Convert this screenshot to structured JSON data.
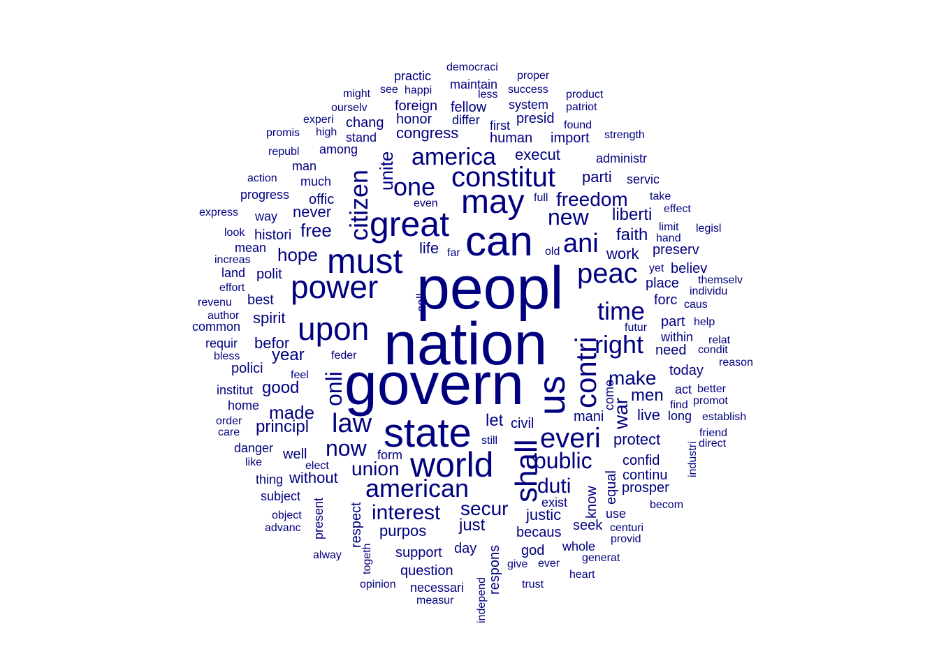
{
  "color": "#00007f",
  "words": [
    {
      "text": "peopl",
      "freq": 100
    },
    {
      "text": "nation",
      "freq": 98
    },
    {
      "text": "govern",
      "freq": 96
    },
    {
      "text": "us",
      "freq": 78,
      "vertical": true
    },
    {
      "text": "can",
      "freq": 74
    },
    {
      "text": "state",
      "freq": 70
    },
    {
      "text": "great",
      "freq": 64
    },
    {
      "text": "may",
      "freq": 62
    },
    {
      "text": "must",
      "freq": 60
    },
    {
      "text": "world",
      "freq": 58
    },
    {
      "text": "power",
      "freq": 56
    },
    {
      "text": "upon",
      "freq": 55
    },
    {
      "text": "shall",
      "freq": 54,
      "vertical": true
    },
    {
      "text": "contri",
      "freq": 52,
      "vertical": true
    },
    {
      "text": "constitut",
      "freq": 50
    },
    {
      "text": "peac",
      "freq": 48
    },
    {
      "text": "everi",
      "freq": 48
    },
    {
      "text": "ani",
      "freq": 46
    },
    {
      "text": "american",
      "freq": 46
    },
    {
      "text": "law",
      "freq": 46
    },
    {
      "text": "one",
      "freq": 44
    },
    {
      "text": "citizen",
      "freq": 44,
      "vertical": true
    },
    {
      "text": "america",
      "freq": 42
    },
    {
      "text": "time",
      "freq": 42
    },
    {
      "text": "right",
      "freq": 42
    },
    {
      "text": "onli",
      "freq": 40,
      "vertical": true
    },
    {
      "text": "now",
      "freq": 40
    },
    {
      "text": "public",
      "freq": 38
    },
    {
      "text": "new",
      "freq": 38
    },
    {
      "text": "freedom",
      "freq": 34
    },
    {
      "text": "make",
      "freq": 34
    },
    {
      "text": "duti",
      "freq": 34
    },
    {
      "text": "interest",
      "freq": 34
    },
    {
      "text": "union",
      "freq": 32
    },
    {
      "text": "secur",
      "freq": 32
    },
    {
      "text": "war",
      "freq": 32,
      "vertical": true
    },
    {
      "text": "made",
      "freq": 28
    },
    {
      "text": "free",
      "freq": 28
    },
    {
      "text": "liberti",
      "freq": 28
    },
    {
      "text": "unite",
      "freq": 28,
      "vertical": true
    },
    {
      "text": "faith",
      "freq": 26
    },
    {
      "text": "hope",
      "freq": 26
    },
    {
      "text": "principl",
      "freq": 26
    },
    {
      "text": "year",
      "freq": 26
    },
    {
      "text": "good",
      "freq": 26
    },
    {
      "text": "protect",
      "freq": 26
    },
    {
      "text": "just",
      "freq": 26
    },
    {
      "text": "justic",
      "freq": 24
    },
    {
      "text": "purpos",
      "freq": 24
    },
    {
      "text": "let",
      "freq": 24
    },
    {
      "text": "men",
      "freq": 24
    },
    {
      "text": "work",
      "freq": 24
    },
    {
      "text": "execut",
      "freq": 24
    },
    {
      "text": "congress",
      "freq": 24
    },
    {
      "text": "life",
      "freq": 22
    },
    {
      "text": "spirit",
      "freq": 22
    },
    {
      "text": "befor",
      "freq": 22
    },
    {
      "text": "never",
      "freq": 22
    },
    {
      "text": "parti",
      "freq": 22
    },
    {
      "text": "live",
      "freq": 22
    },
    {
      "text": "confid",
      "freq": 22
    },
    {
      "text": "without",
      "freq": 22
    },
    {
      "text": "place",
      "freq": 22
    },
    {
      "text": "support",
      "freq": 22
    },
    {
      "text": "question",
      "freq": 22
    },
    {
      "text": "day",
      "freq": 22
    },
    {
      "text": "human",
      "freq": 22
    },
    {
      "text": "prosper",
      "freq": 22
    },
    {
      "text": "respons",
      "freq": 22,
      "vertical": true
    },
    {
      "text": "know",
      "freq": 22,
      "vertical": true
    },
    {
      "text": "equal",
      "freq": 22,
      "vertical": true
    },
    {
      "text": "polit",
      "freq": 20
    },
    {
      "text": "best",
      "freq": 20
    },
    {
      "text": "well",
      "freq": 20
    },
    {
      "text": "offic",
      "freq": 20
    },
    {
      "text": "much",
      "freq": 20
    },
    {
      "text": "histori",
      "freq": 20
    },
    {
      "text": "import",
      "freq": 20
    },
    {
      "text": "honor",
      "freq": 20
    },
    {
      "text": "foreign",
      "freq": 20
    },
    {
      "text": "fellow",
      "freq": 20
    },
    {
      "text": "chang",
      "freq": 20
    },
    {
      "text": "presid",
      "freq": 20
    },
    {
      "text": "civil",
      "freq": 20
    },
    {
      "text": "polici",
      "freq": 20
    },
    {
      "text": "continu",
      "freq": 20
    },
    {
      "text": "need",
      "freq": 20
    },
    {
      "text": "part",
      "freq": 20
    },
    {
      "text": "today",
      "freq": 20
    },
    {
      "text": "preserv",
      "freq": 20
    },
    {
      "text": "forc",
      "freq": 20
    },
    {
      "text": "believ",
      "freq": 20
    },
    {
      "text": "becaus",
      "freq": 20
    },
    {
      "text": "god",
      "freq": 20
    },
    {
      "text": "seek",
      "freq": 20
    },
    {
      "text": "mani",
      "freq": 20
    },
    {
      "text": "come",
      "freq": 20,
      "vertical": true
    },
    {
      "text": "respect",
      "freq": 20,
      "vertical": true
    },
    {
      "text": "call",
      "freq": 20,
      "vertical": true
    },
    {
      "text": "form",
      "freq": 18
    },
    {
      "text": "among",
      "freq": 18
    },
    {
      "text": "stand",
      "freq": 18
    },
    {
      "text": "man",
      "freq": 18
    },
    {
      "text": "administr",
      "freq": 18
    },
    {
      "text": "system",
      "freq": 18
    },
    {
      "text": "differ",
      "freq": 18
    },
    {
      "text": "first",
      "freq": 18
    },
    {
      "text": "maintain",
      "freq": 18
    },
    {
      "text": "practic",
      "freq": 18
    },
    {
      "text": "mean",
      "freq": 18
    },
    {
      "text": "land",
      "freq": 18
    },
    {
      "text": "progress",
      "freq": 18
    },
    {
      "text": "way",
      "freq": 18
    },
    {
      "text": "institut",
      "freq": 18
    },
    {
      "text": "home",
      "freq": 18
    },
    {
      "text": "danger",
      "freq": 18
    },
    {
      "text": "subject",
      "freq": 18
    },
    {
      "text": "thing",
      "freq": 18
    },
    {
      "text": "necessari",
      "freq": 18
    },
    {
      "text": "whole",
      "freq": 18
    },
    {
      "text": "exist",
      "freq": 18
    },
    {
      "text": "use",
      "freq": 18
    },
    {
      "text": "servic",
      "freq": 18
    },
    {
      "text": "within",
      "freq": 18
    },
    {
      "text": "act",
      "freq": 18
    },
    {
      "text": "long",
      "freq": 18
    },
    {
      "text": "common",
      "freq": 18
    },
    {
      "text": "requir",
      "freq": 18
    },
    {
      "text": "present",
      "freq": 18,
      "vertical": true
    },
    {
      "text": "success",
      "freq": 16
    },
    {
      "text": "proper",
      "freq": 16
    },
    {
      "text": "democraci",
      "freq": 16
    },
    {
      "text": "happi",
      "freq": 16
    },
    {
      "text": "less",
      "freq": 16
    },
    {
      "text": "found",
      "freq": 16
    },
    {
      "text": "product",
      "freq": 16
    },
    {
      "text": "patriot",
      "freq": 16
    },
    {
      "text": "strength",
      "freq": 16
    },
    {
      "text": "ourselv",
      "freq": 16
    },
    {
      "text": "might",
      "freq": 16
    },
    {
      "text": "see",
      "freq": 16
    },
    {
      "text": "experi",
      "freq": 16
    },
    {
      "text": "high",
      "freq": 16
    },
    {
      "text": "promis",
      "freq": 16
    },
    {
      "text": "republ",
      "freq": 16
    },
    {
      "text": "action",
      "freq": 16
    },
    {
      "text": "express",
      "freq": 16
    },
    {
      "text": "look",
      "freq": 16
    },
    {
      "text": "increas",
      "freq": 16
    },
    {
      "text": "effort",
      "freq": 16
    },
    {
      "text": "revenu",
      "freq": 16
    },
    {
      "text": "author",
      "freq": 16
    },
    {
      "text": "bless",
      "freq": 16
    },
    {
      "text": "feel",
      "freq": 16
    },
    {
      "text": "feder",
      "freq": 16
    },
    {
      "text": "order",
      "freq": 16
    },
    {
      "text": "care",
      "freq": 16
    },
    {
      "text": "like",
      "freq": 16
    },
    {
      "text": "elect",
      "freq": 16
    },
    {
      "text": "object",
      "freq": 16
    },
    {
      "text": "advanc",
      "freq": 16
    },
    {
      "text": "alway",
      "freq": 16
    },
    {
      "text": "opinion",
      "freq": 16
    },
    {
      "text": "measur",
      "freq": 16
    },
    {
      "text": "trust",
      "freq": 16
    },
    {
      "text": "give",
      "freq": 16
    },
    {
      "text": "ever",
      "freq": 16
    },
    {
      "text": "heart",
      "freq": 16
    },
    {
      "text": "generat",
      "freq": 16
    },
    {
      "text": "centuri",
      "freq": 16
    },
    {
      "text": "provid",
      "freq": 16
    },
    {
      "text": "becom",
      "freq": 16
    },
    {
      "text": "still",
      "freq": 16
    },
    {
      "text": "old",
      "freq": 16
    },
    {
      "text": "far",
      "freq": 16
    },
    {
      "text": "even",
      "freq": 16
    },
    {
      "text": "full",
      "freq": 16
    },
    {
      "text": "take",
      "freq": 16
    },
    {
      "text": "effect",
      "freq": 16
    },
    {
      "text": "limit",
      "freq": 16
    },
    {
      "text": "hand",
      "freq": 16
    },
    {
      "text": "legisl",
      "freq": 16
    },
    {
      "text": "yet",
      "freq": 16
    },
    {
      "text": "themselv",
      "freq": 16
    },
    {
      "text": "individu",
      "freq": 16
    },
    {
      "text": "caus",
      "freq": 16
    },
    {
      "text": "futur",
      "freq": 16
    },
    {
      "text": "help",
      "freq": 16
    },
    {
      "text": "relat",
      "freq": 16
    },
    {
      "text": "condit",
      "freq": 16
    },
    {
      "text": "reason",
      "freq": 16
    },
    {
      "text": "better",
      "freq": 16
    },
    {
      "text": "find",
      "freq": 16
    },
    {
      "text": "promot",
      "freq": 16
    },
    {
      "text": "establish",
      "freq": 16
    },
    {
      "text": "friend",
      "freq": 16
    },
    {
      "text": "direct",
      "freq": 16
    },
    {
      "text": "industri",
      "freq": 16,
      "vertical": true
    },
    {
      "text": "independ",
      "freq": 16,
      "vertical": true
    },
    {
      "text": "togeth",
      "freq": 16,
      "vertical": true
    }
  ]
}
